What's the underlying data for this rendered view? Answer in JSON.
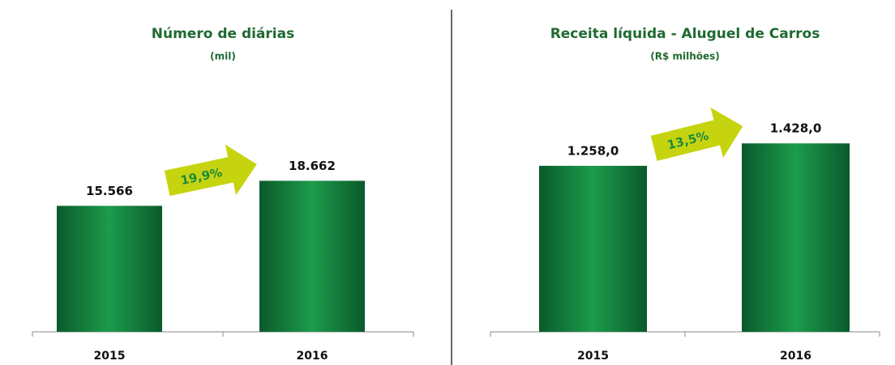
{
  "chart_data": [
    {
      "type": "bar",
      "title": "Número de diárias",
      "subtitle": "(mil)",
      "categories": [
        "2015",
        "2016"
      ],
      "values": [
        15566,
        18662
      ],
      "value_labels": [
        "15.566",
        "18.662"
      ],
      "annotation": "19,9%",
      "ylim": [
        0,
        30000
      ],
      "color": "#0f7a3a"
    },
    {
      "type": "bar",
      "title": "Receita líquida - Aluguel de Carros",
      "subtitle": "(R$ milhões)",
      "categories": [
        "2015",
        "2016"
      ],
      "values": [
        1258.0,
        1428.0
      ],
      "value_labels": [
        "1.258,0",
        "1.428,0"
      ],
      "annotation": "13,5%",
      "ylim": [
        0,
        1840
      ],
      "color": "#0f7a3a"
    }
  ]
}
